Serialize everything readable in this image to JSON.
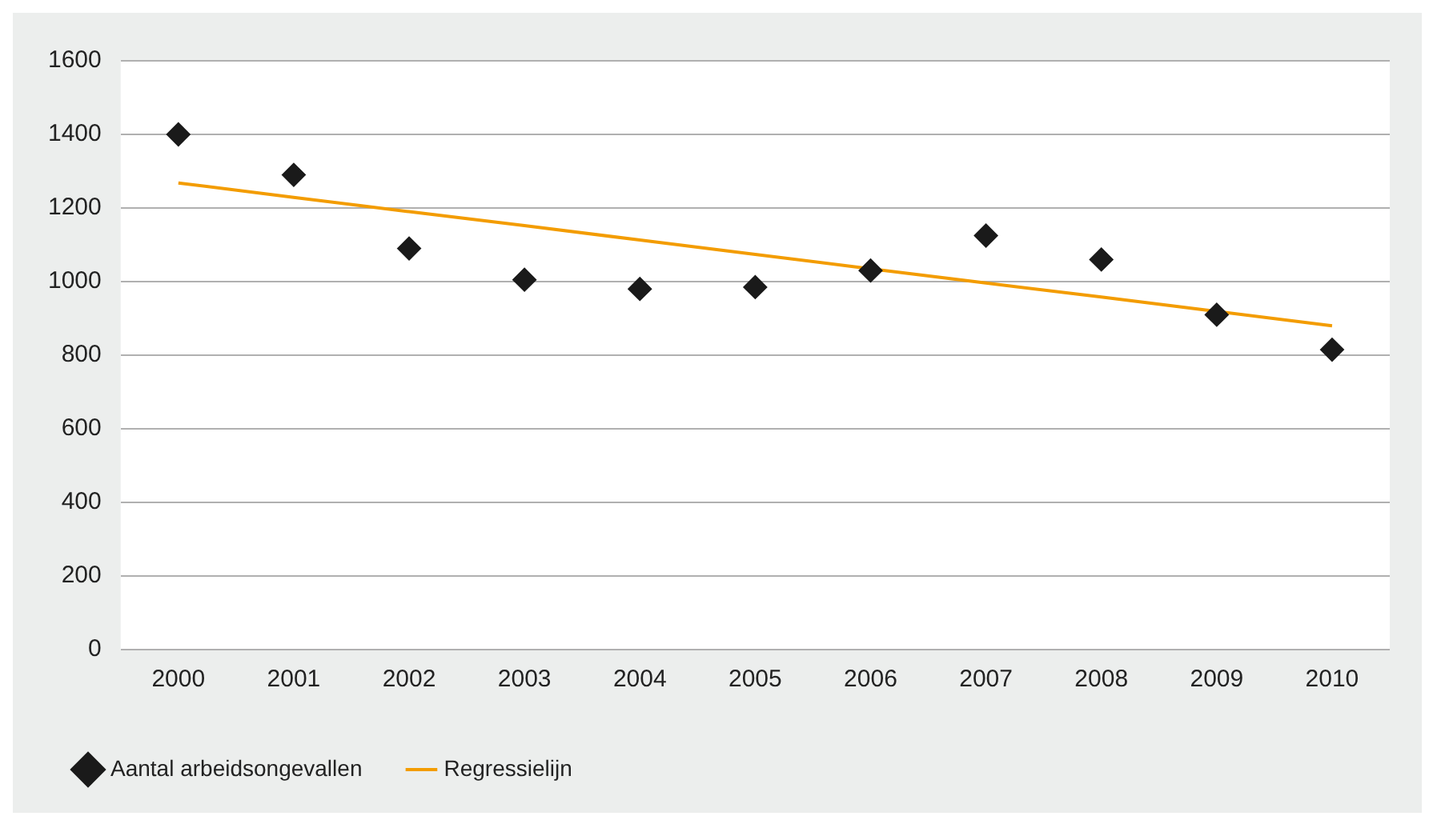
{
  "chart_data": {
    "type": "scatter",
    "categories": [
      "2000",
      "2001",
      "2002",
      "2003",
      "2004",
      "2005",
      "2006",
      "2007",
      "2008",
      "2009",
      "2010"
    ],
    "series": [
      {
        "name": "Aantal arbeidsongevallen",
        "type": "scatter",
        "color": "#1a1a1a",
        "marker": "diamond",
        "values": [
          1400,
          1290,
          1090,
          1005,
          980,
          985,
          1030,
          1125,
          1060,
          910,
          815
        ]
      },
      {
        "name": "Regressielijn",
        "type": "line",
        "color": "#f39c00",
        "marker": "none",
        "values": [
          1268,
          1229,
          1190,
          1152,
          1113,
          1074,
          1035,
          996,
          958,
          919,
          880
        ]
      }
    ],
    "ylim": [
      0,
      1600
    ],
    "yticks": [
      0,
      200,
      400,
      600,
      800,
      1000,
      1200,
      1400,
      1600
    ],
    "grid": "y",
    "legend": "bottom"
  }
}
